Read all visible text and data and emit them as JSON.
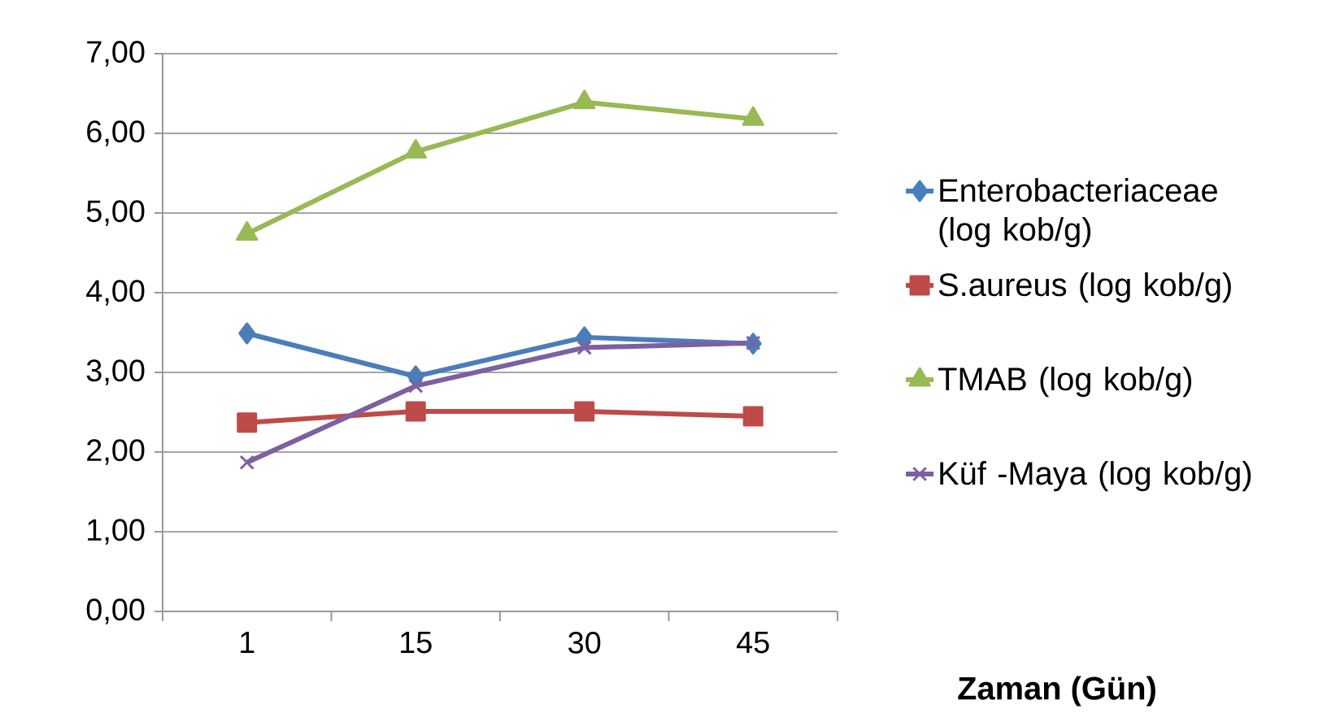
{
  "chart_data": {
    "type": "line",
    "annotations": [
      "Zaman (Gün)"
    ],
    "categories": [
      "1",
      "15",
      "30",
      "45"
    ],
    "series": [
      {
        "name": "Enterobacteriaceae (log kob/g)",
        "color": "#4a7ebb",
        "marker": "diamond",
        "values": [
          3.49,
          2.95,
          3.44,
          3.36
        ]
      },
      {
        "name": "S.aureus (log kob/g)",
        "color": "#be4b48",
        "marker": "square",
        "values": [
          2.37,
          2.51,
          2.51,
          2.45
        ]
      },
      {
        "name": "TMAB (log kob/g)",
        "color": "#98b954",
        "marker": "triangle",
        "values": [
          4.74,
          5.77,
          6.39,
          6.18
        ]
      },
      {
        "name": "Küf -Maya (log kob/g)",
        "color": "#7d60a0",
        "marker": "cross",
        "values": [
          1.87,
          2.83,
          3.31,
          3.37
        ]
      }
    ],
    "ylim": [
      0,
      7
    ],
    "yticks": [
      {
        "value": 0,
        "label": "0,00"
      },
      {
        "value": 1,
        "label": "1,00"
      },
      {
        "value": 2,
        "label": "2,00"
      },
      {
        "value": 3,
        "label": "3,00"
      },
      {
        "value": 4,
        "label": "4,00"
      },
      {
        "value": 5,
        "label": "5,00"
      },
      {
        "value": 6,
        "label": "6,00"
      },
      {
        "value": 7,
        "label": "7,00"
      }
    ],
    "grid": "y",
    "legend": "right",
    "line_style": "solid"
  }
}
